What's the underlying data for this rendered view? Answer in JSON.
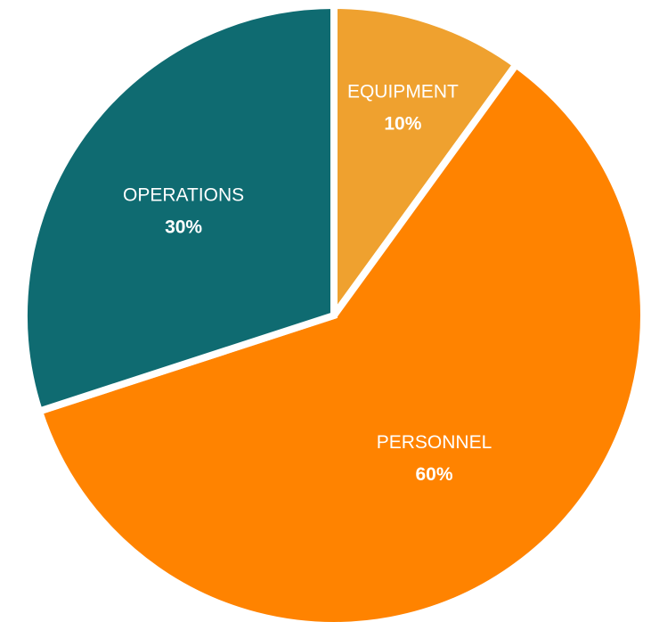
{
  "chart_data": {
    "type": "pie",
    "title": "",
    "start_angle_deg": 0,
    "direction": "clockwise",
    "slices": [
      {
        "label": "EQUIPMENT",
        "value": 10,
        "value_label": "10%",
        "color": "#EFA12F"
      },
      {
        "label": "PERSONNEL",
        "value": 60,
        "value_label": "60%",
        "color": "#FF8300"
      },
      {
        "label": "OPERATIONS",
        "value": 30,
        "value_label": "30%",
        "color": "#0F6B71"
      }
    ]
  }
}
